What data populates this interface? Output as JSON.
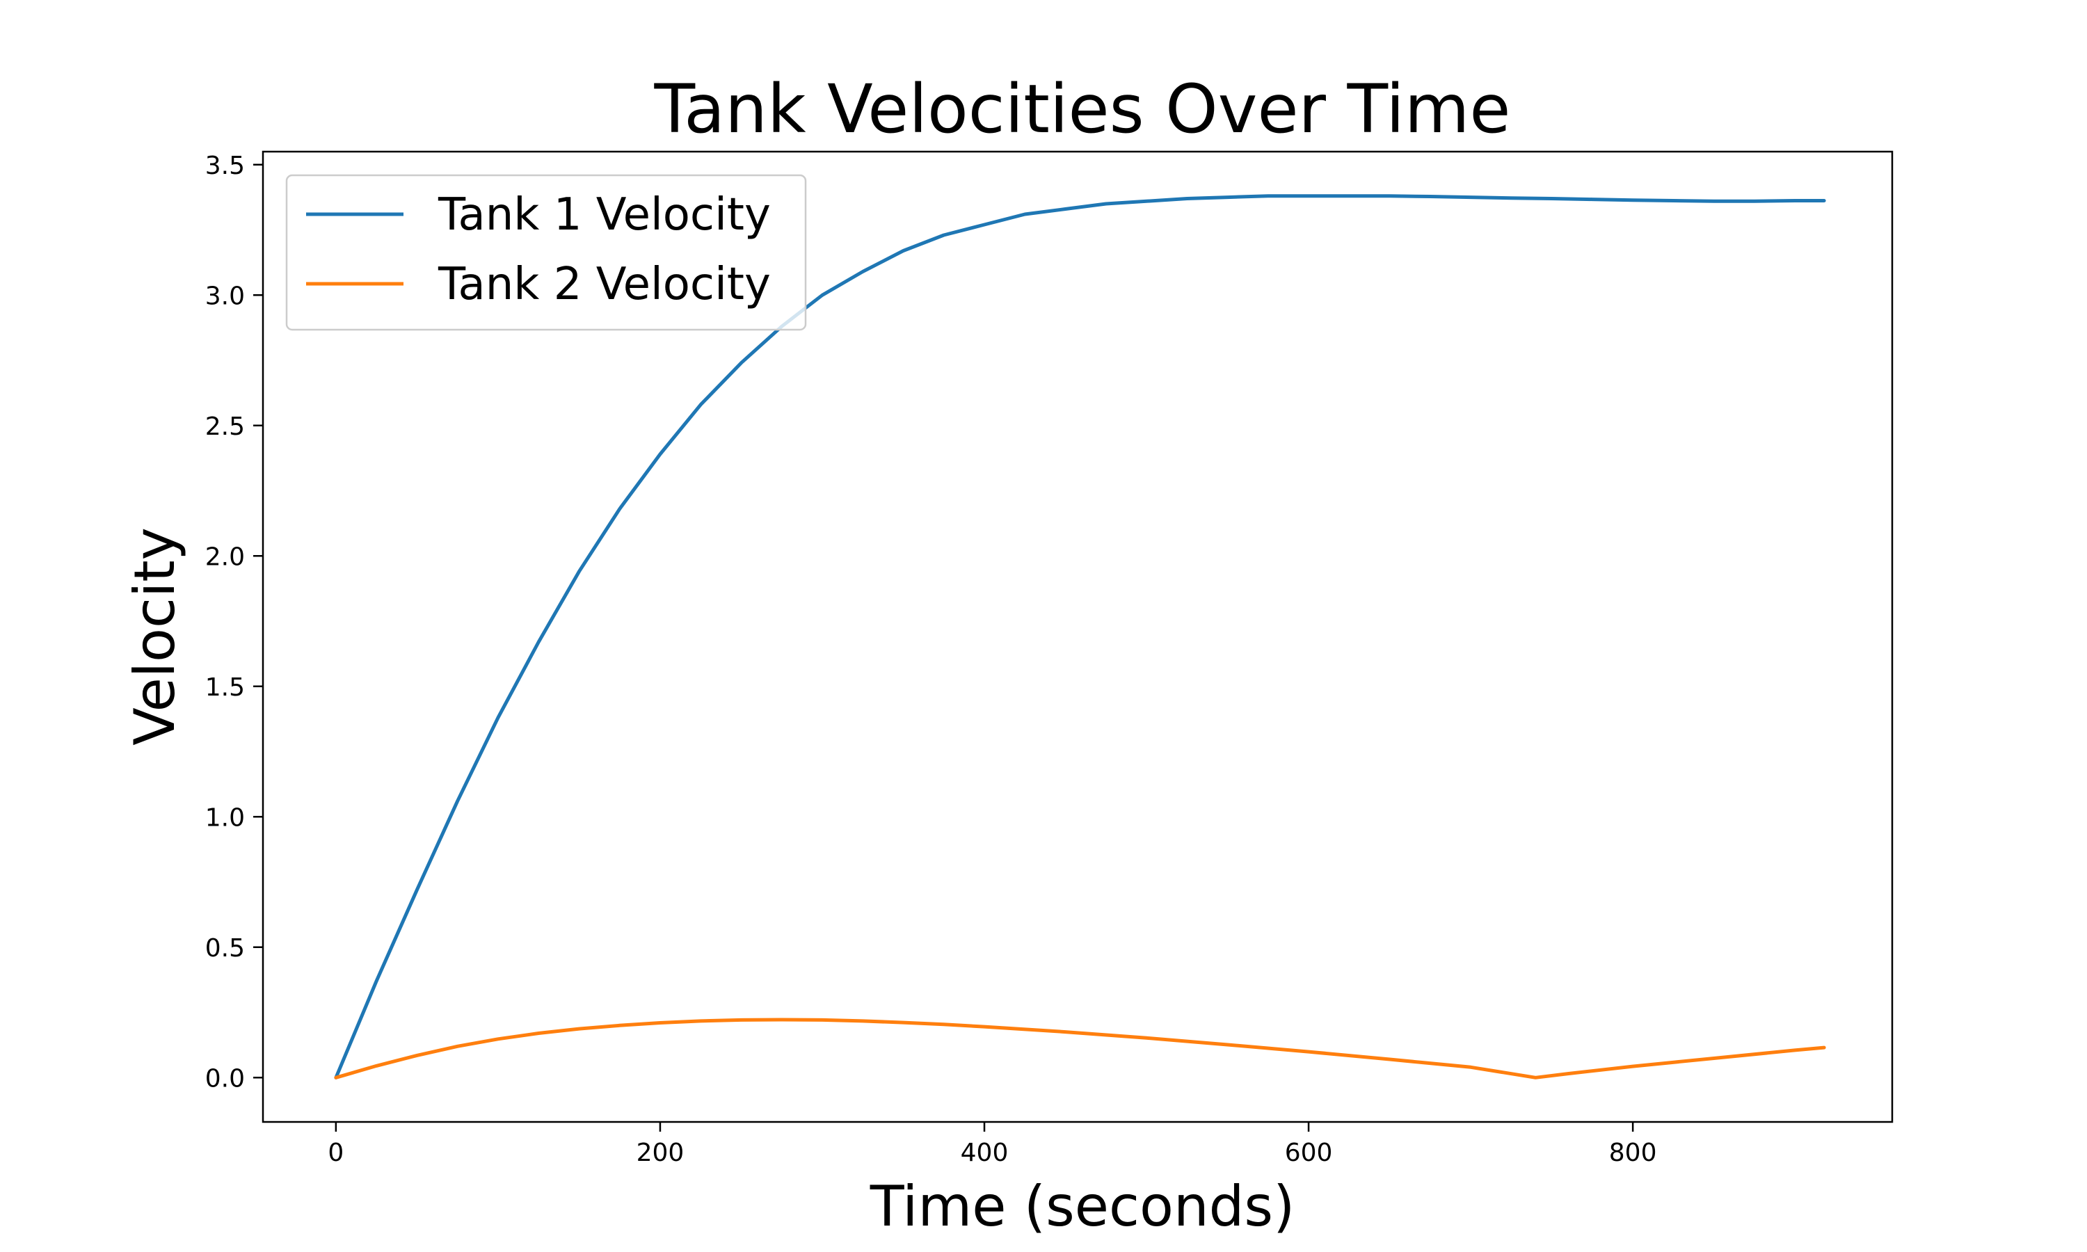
{
  "chart_data": {
    "type": "line",
    "title": "Tank Velocities Over Time",
    "xlabel": "Time (seconds)",
    "ylabel": "Velocity",
    "xlim": [
      -45,
      960
    ],
    "ylim": [
      -0.17,
      3.55
    ],
    "xticks": [
      0,
      200,
      400,
      600,
      800
    ],
    "xtick_labels": [
      "0",
      "200",
      "400",
      "600",
      "800"
    ],
    "yticks": [
      0.0,
      0.5,
      1.0,
      1.5,
      2.0,
      2.5,
      3.0,
      3.5
    ],
    "ytick_labels": [
      "0.0",
      "0.5",
      "1.0",
      "1.5",
      "2.0",
      "2.5",
      "3.0",
      "3.5"
    ],
    "grid": false,
    "legend_position": "upper-left",
    "series": [
      {
        "name": "Tank 1 Velocity",
        "color": "#1f77b4",
        "x": [
          0,
          25,
          50,
          75,
          100,
          125,
          150,
          175,
          200,
          225,
          250,
          275,
          300,
          325,
          350,
          375,
          400,
          425,
          450,
          475,
          500,
          525,
          550,
          575,
          600,
          625,
          650,
          675,
          700,
          725,
          750,
          775,
          800,
          825,
          850,
          875,
          900,
          918
        ],
        "values": [
          0.0,
          0.37,
          0.72,
          1.06,
          1.38,
          1.67,
          1.94,
          2.18,
          2.39,
          2.58,
          2.74,
          2.88,
          3.0,
          3.09,
          3.17,
          3.23,
          3.27,
          3.31,
          3.33,
          3.35,
          3.36,
          3.37,
          3.375,
          3.38,
          3.38,
          3.38,
          3.38,
          3.378,
          3.375,
          3.372,
          3.37,
          3.367,
          3.364,
          3.362,
          3.36,
          3.36,
          3.362,
          3.362
        ]
      },
      {
        "name": "Tank 2 Velocity",
        "color": "#ff7f0e",
        "x": [
          0,
          25,
          50,
          75,
          100,
          125,
          150,
          175,
          200,
          225,
          250,
          275,
          300,
          325,
          350,
          375,
          400,
          450,
          500,
          550,
          600,
          650,
          700,
          740,
          760,
          800,
          850,
          900,
          918
        ],
        "values": [
          0.0,
          0.045,
          0.085,
          0.12,
          0.148,
          0.17,
          0.187,
          0.2,
          0.21,
          0.217,
          0.221,
          0.222,
          0.221,
          0.217,
          0.211,
          0.204,
          0.195,
          0.175,
          0.152,
          0.126,
          0.099,
          0.07,
          0.04,
          0.0,
          0.015,
          0.043,
          0.074,
          0.105,
          0.115
        ]
      }
    ]
  }
}
